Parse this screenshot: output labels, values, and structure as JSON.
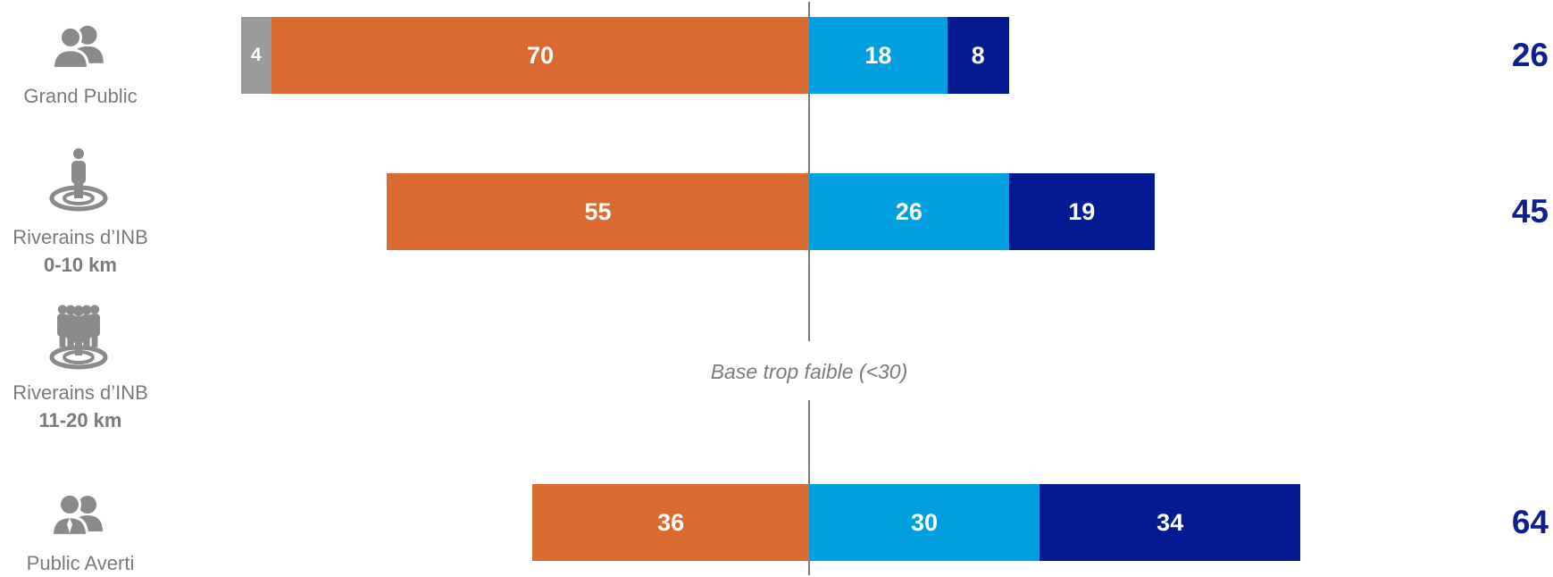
{
  "chart_data": {
    "type": "bar",
    "orientation": "horizontal-diverging",
    "categories": [
      {
        "label": "Grand Public",
        "sublabel": "",
        "icon": "people-pair-icon"
      },
      {
        "label": "Riverains d’INB",
        "sublabel": "0-10 km",
        "icon": "person-on-target-icon"
      },
      {
        "label": "Riverains d’INB",
        "sublabel": "11-20 km",
        "icon": "group-on-target-icon"
      },
      {
        "label": "Public Averti",
        "sublabel": "",
        "icon": "business-pair-icon"
      }
    ],
    "series": [
      {
        "color": "#9b9b9b",
        "side": "left",
        "values": [
          4,
          null,
          null,
          null
        ]
      },
      {
        "color": "#db6a30",
        "side": "left",
        "values": [
          70,
          55,
          null,
          36
        ]
      },
      {
        "color": "#00a0e0",
        "side": "right",
        "values": [
          18,
          26,
          null,
          30
        ]
      },
      {
        "color": "#031a92",
        "side": "right",
        "values": [
          8,
          19,
          null,
          34
        ]
      }
    ],
    "totals": [
      26,
      45,
      null,
      64
    ],
    "note": "Base trop faible (<30)"
  }
}
